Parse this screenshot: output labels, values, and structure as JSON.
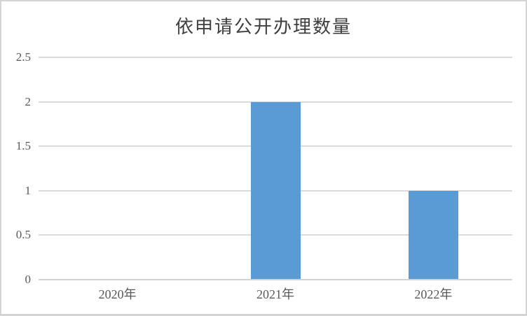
{
  "chart_data": {
    "type": "bar",
    "title": "依申请公开办理数量",
    "categories": [
      "2020年",
      "2021年",
      "2022年"
    ],
    "values": [
      0,
      2,
      1
    ],
    "xlabel": "",
    "ylabel": "",
    "ylim": [
      0,
      2.5
    ],
    "ytick_step": 0.5,
    "ytick_labels": [
      "0",
      "0.5",
      "1",
      "1.5",
      "2",
      "2.5"
    ],
    "grid": true,
    "legend": "none",
    "colors": {
      "bar": "#5b9bd5",
      "gridline": "#dbdbdb",
      "axis_line": "#d2d2d2",
      "tick_text": "#595959",
      "title_text": "#3f3f3f",
      "frame_border": "#d4d4d4",
      "background": "#ffffff"
    }
  }
}
